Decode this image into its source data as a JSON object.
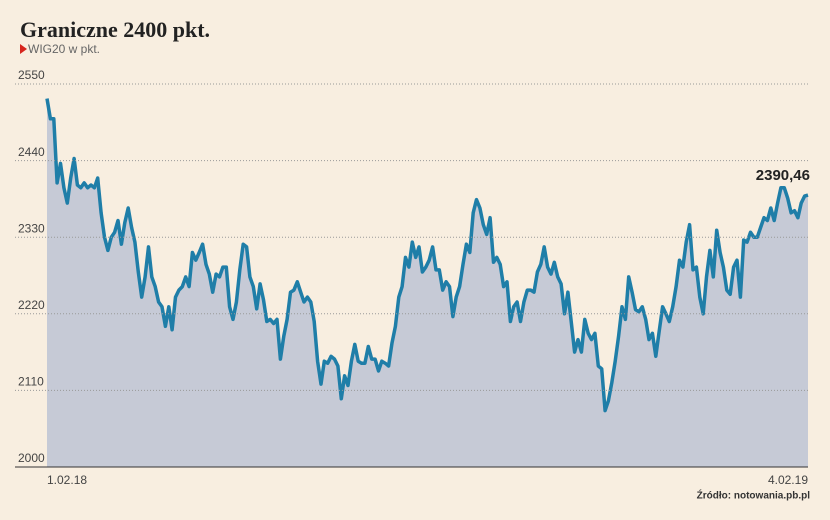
{
  "chart_data": {
    "type": "line",
    "title": "Graniczne 2400 pkt.",
    "source": "Źródło: notowania.pb.pl",
    "categories": [
      "1.02.18",
      null,
      null,
      null,
      null,
      null,
      null,
      null,
      null,
      null,
      null,
      null,
      null,
      null,
      null,
      null,
      null,
      null,
      null,
      null,
      null,
      null,
      null,
      null,
      null,
      null,
      null,
      null,
      null,
      null,
      null,
      null,
      null,
      null,
      null,
      null,
      null,
      null,
      null,
      null,
      null,
      null,
      null,
      null,
      null,
      null,
      null,
      null,
      null,
      null,
      null,
      null,
      null,
      null,
      null,
      null,
      null,
      null,
      null,
      null,
      null,
      null,
      null,
      null,
      null,
      null,
      null,
      null,
      null,
      null,
      null,
      null,
      null,
      null,
      null,
      null,
      null,
      null,
      null,
      null,
      null,
      null,
      null,
      null,
      null,
      null,
      null,
      null,
      null,
      null,
      null,
      null,
      null,
      null,
      null,
      null,
      null,
      null,
      null,
      null,
      null,
      null,
      null,
      null,
      null,
      null,
      null,
      null,
      null,
      null,
      null,
      null,
      null,
      null,
      null,
      null,
      null,
      null,
      null,
      null,
      null,
      null,
      null,
      null,
      null,
      null,
      null,
      null,
      null,
      null,
      null,
      null,
      null,
      null,
      null,
      null,
      null,
      null,
      null,
      null,
      null,
      null,
      null,
      null,
      null,
      null,
      null,
      null,
      null,
      null,
      null,
      null,
      null,
      null,
      null,
      null,
      null,
      null,
      null,
      null,
      null,
      null,
      null,
      null,
      null,
      null,
      null,
      null,
      null,
      null,
      null,
      null,
      null,
      null,
      null,
      null,
      null,
      null,
      null,
      null,
      null,
      null,
      null,
      null,
      null,
      null,
      null,
      null,
      null,
      null,
      null,
      null,
      null,
      null,
      null,
      null,
      null,
      null,
      null,
      null,
      null,
      null,
      null,
      null,
      null,
      null,
      null,
      null,
      null,
      null,
      null,
      null,
      null,
      null,
      null,
      null,
      null,
      null,
      null,
      null,
      null,
      null,
      null,
      null,
      null,
      "4.02.19"
    ],
    "series": [
      {
        "name": "WIG20 w pkt.",
        "color": "#1f7ea8",
        "fill": "#c6cad6",
        "values": [
          2529,
          2500,
          2500,
          2408,
          2436,
          2401,
          2379,
          2415,
          2443,
          2405,
          2401,
          2408,
          2401,
          2405,
          2401,
          2415,
          2365,
          2330,
          2311,
          2330,
          2337,
          2354,
          2320,
          2351,
          2372,
          2344,
          2323,
          2280,
          2244,
          2273,
          2316,
          2273,
          2259,
          2237,
          2230,
          2202,
          2230,
          2197,
          2244,
          2254,
          2259,
          2273,
          2259,
          2308,
          2297,
          2308,
          2320,
          2291,
          2277,
          2251,
          2277,
          2273,
          2287,
          2287,
          2230,
          2212,
          2237,
          2283,
          2320,
          2316,
          2273,
          2259,
          2227,
          2263,
          2240,
          2209,
          2212,
          2206,
          2212,
          2155,
          2188,
          2212,
          2251,
          2254,
          2266,
          2251,
          2237,
          2244,
          2237,
          2209,
          2152,
          2119,
          2152,
          2149,
          2159,
          2155,
          2145,
          2098,
          2131,
          2117,
          2152,
          2176,
          2152,
          2149,
          2149,
          2173,
          2155,
          2155,
          2138,
          2152,
          2149,
          2145,
          2178,
          2202,
          2244,
          2259,
          2301,
          2287,
          2323,
          2301,
          2316,
          2280,
          2287,
          2297,
          2316,
          2283,
          2283,
          2254,
          2266,
          2259,
          2216,
          2244,
          2259,
          2291,
          2320,
          2308,
          2365,
          2384,
          2372,
          2348,
          2334,
          2358,
          2294,
          2301,
          2291,
          2259,
          2266,
          2209,
          2230,
          2237,
          2209,
          2237,
          2254,
          2254,
          2251,
          2280,
          2291,
          2316,
          2287,
          2277,
          2294,
          2273,
          2263,
          2220,
          2251,
          2209,
          2165,
          2183,
          2165,
          2212,
          2192,
          2183,
          2192,
          2145,
          2141,
          2081,
          2095,
          2121,
          2152,
          2188,
          2230,
          2212,
          2273,
          2251,
          2226,
          2223,
          2230,
          2212,
          2183,
          2192,
          2159,
          2195,
          2230,
          2220,
          2209,
          2230,
          2259,
          2297,
          2287,
          2323,
          2348,
          2283,
          2287,
          2244,
          2220,
          2273,
          2311,
          2273,
          2340,
          2308,
          2287,
          2254,
          2248,
          2287,
          2297,
          2244,
          2326,
          2323,
          2337,
          2330,
          2330,
          2344,
          2358,
          2354,
          2372,
          2354,
          2379,
          2401,
          2401,
          2386,
          2365,
          2368,
          2358,
          2379,
          2389,
          2390.46
        ]
      }
    ],
    "annotation": {
      "text": "2390,46",
      "value": 2390.46
    },
    "ylim": [
      2000,
      2550
    ],
    "yticks": [
      2000,
      2110,
      2220,
      2330,
      2440,
      2550
    ],
    "grid": true
  }
}
